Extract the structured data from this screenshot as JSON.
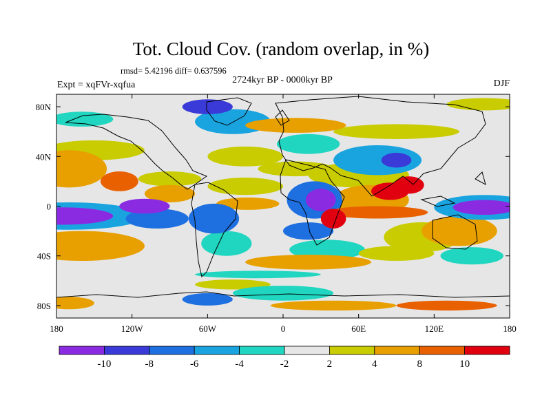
{
  "chart_data": {
    "type": "heatmap",
    "title": "Tot. Cloud Cov. (random overlap, in %)",
    "stats": "rmsd= 5.42196 diff= 0.637596",
    "subtitle": "2724kyr BP - 0000kyr BP",
    "experiment": "Expt = xqFVr-xqfua",
    "season": "DJF",
    "projection": "cylindrical-equidistant",
    "xlim": [
      -180,
      180
    ],
    "ylim": [
      -90,
      90
    ],
    "x_ticks": [
      {
        "value": -180,
        "label": "180"
      },
      {
        "value": -120,
        "label": "120W"
      },
      {
        "value": -60,
        "label": "60W"
      },
      {
        "value": 0,
        "label": "0"
      },
      {
        "value": 60,
        "label": "60E"
      },
      {
        "value": 120,
        "label": "120E"
      },
      {
        "value": 180,
        "label": "180"
      }
    ],
    "y_ticks": [
      {
        "value": 80,
        "label": "80N"
      },
      {
        "value": 40,
        "label": "40N"
      },
      {
        "value": 0,
        "label": "0"
      },
      {
        "value": -40,
        "label": "40S"
      },
      {
        "value": -80,
        "label": "80S"
      }
    ],
    "colorbar": {
      "levels": [
        -10,
        -8,
        -6,
        -4,
        -2,
        2,
        4,
        8,
        10
      ],
      "labels": [
        "-10",
        "-8",
        "-6",
        "-4",
        "-2",
        "2",
        "4",
        "8",
        "10"
      ],
      "colors": [
        "#8a2be2",
        "#3a3ad8",
        "#1e6fe0",
        "#19a4e0",
        "#20d6c0",
        "#e6e6e6",
        "#c8cc00",
        "#e8a000",
        "#e86000",
        "#e00010"
      ]
    },
    "anomaly_regions": [
      {
        "lon": 30,
        "lat": 5,
        "rx": 12,
        "ry": 9,
        "value": -11
      },
      {
        "lon": 25,
        "lat": 5,
        "rx": 22,
        "ry": 15,
        "value": -7
      },
      {
        "lon": -175,
        "lat": -8,
        "rx": 40,
        "ry": 7,
        "value": -11
      },
      {
        "lon": -170,
        "lat": -8,
        "rx": 60,
        "ry": 11,
        "value": -6
      },
      {
        "lon": 160,
        "lat": -1,
        "rx": 25,
        "ry": 6,
        "value": -11
      },
      {
        "lon": 160,
        "lat": -1,
        "rx": 40,
        "ry": 10,
        "value": -6
      },
      {
        "lon": -100,
        "lat": -10,
        "rx": 25,
        "ry": 8,
        "value": -7
      },
      {
        "lon": -110,
        "lat": 0,
        "rx": 20,
        "ry": 6,
        "value": -11
      },
      {
        "lon": -55,
        "lat": -10,
        "rx": 20,
        "ry": 12,
        "value": -7
      },
      {
        "lon": -45,
        "lat": -30,
        "rx": 20,
        "ry": 10,
        "value": -3
      },
      {
        "lon": 20,
        "lat": -20,
        "rx": 20,
        "ry": 7,
        "value": -7
      },
      {
        "lon": 35,
        "lat": -35,
        "rx": 30,
        "ry": 8,
        "value": -3
      },
      {
        "lon": 75,
        "lat": 37,
        "rx": 35,
        "ry": 12,
        "value": -5
      },
      {
        "lon": 90,
        "lat": 37,
        "rx": 12,
        "ry": 6,
        "value": -9
      },
      {
        "lon": 20,
        "lat": 50,
        "rx": 25,
        "ry": 8,
        "value": -4
      },
      {
        "lon": -40,
        "lat": 68,
        "rx": 30,
        "ry": 10,
        "value": -5
      },
      {
        "lon": -60,
        "lat": 80,
        "rx": 20,
        "ry": 6,
        "value": -9
      },
      {
        "lon": -160,
        "lat": 70,
        "rx": 25,
        "ry": 6,
        "value": -3
      },
      {
        "lon": 150,
        "lat": -40,
        "rx": 25,
        "ry": 7,
        "value": -3
      },
      {
        "lon": -20,
        "lat": -55,
        "rx": 50,
        "ry": 3,
        "value": -4
      },
      {
        "lon": 0,
        "lat": -70,
        "rx": 40,
        "ry": 6,
        "value": -4
      },
      {
        "lon": -60,
        "lat": -75,
        "rx": 20,
        "ry": 5,
        "value": -8
      },
      {
        "lon": -170,
        "lat": 30,
        "rx": 30,
        "ry": 15,
        "value": 6
      },
      {
        "lon": -160,
        "lat": -32,
        "rx": 50,
        "ry": 12,
        "value": 7
      },
      {
        "lon": -130,
        "lat": 20,
        "rx": 15,
        "ry": 8,
        "value": 9
      },
      {
        "lon": -90,
        "lat": 10,
        "rx": 20,
        "ry": 7,
        "value": 6
      },
      {
        "lon": -90,
        "lat": 22,
        "rx": 25,
        "ry": 6,
        "value": 3
      },
      {
        "lon": -28,
        "lat": 2,
        "rx": 25,
        "ry": 5,
        "value": 6
      },
      {
        "lon": -30,
        "lat": 16,
        "rx": 30,
        "ry": 7,
        "value": 3
      },
      {
        "lon": 70,
        "lat": 5,
        "rx": 30,
        "ry": 12,
        "value": 6
      },
      {
        "lon": 85,
        "lat": 12,
        "rx": 15,
        "ry": 7,
        "value": 11
      },
      {
        "lon": 100,
        "lat": 17,
        "rx": 12,
        "ry": 7,
        "value": 11
      },
      {
        "lon": 75,
        "lat": -5,
        "rx": 40,
        "ry": 5,
        "value": 9
      },
      {
        "lon": 140,
        "lat": -20,
        "rx": 30,
        "ry": 12,
        "value": 5
      },
      {
        "lon": 110,
        "lat": -25,
        "rx": 30,
        "ry": 12,
        "value": 3
      },
      {
        "lon": 40,
        "lat": -10,
        "rx": 10,
        "ry": 8,
        "value": 11
      },
      {
        "lon": 60,
        "lat": 25,
        "rx": 40,
        "ry": 10,
        "value": 3
      },
      {
        "lon": 10,
        "lat": 30,
        "rx": 30,
        "ry": 6,
        "value": 3
      },
      {
        "lon": -30,
        "lat": 40,
        "rx": 30,
        "ry": 8,
        "value": 3
      },
      {
        "lon": 10,
        "lat": 65,
        "rx": 40,
        "ry": 6,
        "value": 6
      },
      {
        "lon": 90,
        "lat": 60,
        "rx": 50,
        "ry": 6,
        "value": 3
      },
      {
        "lon": -150,
        "lat": 45,
        "rx": 40,
        "ry": 8,
        "value": 3
      },
      {
        "lon": 20,
        "lat": -45,
        "rx": 50,
        "ry": 6,
        "value": 6
      },
      {
        "lon": 90,
        "lat": -38,
        "rx": 30,
        "ry": 6,
        "value": 3
      },
      {
        "lon": -170,
        "lat": -78,
        "rx": 20,
        "ry": 5,
        "value": 7
      },
      {
        "lon": 40,
        "lat": -80,
        "rx": 50,
        "ry": 4,
        "value": 7
      },
      {
        "lon": 130,
        "lat": -80,
        "rx": 40,
        "ry": 4,
        "value": 9
      },
      {
        "lon": -40,
        "lat": -63,
        "rx": 30,
        "ry": 4,
        "value": 3
      },
      {
        "lon": 160,
        "lat": 82,
        "rx": 30,
        "ry": 5,
        "value": 3
      }
    ]
  }
}
